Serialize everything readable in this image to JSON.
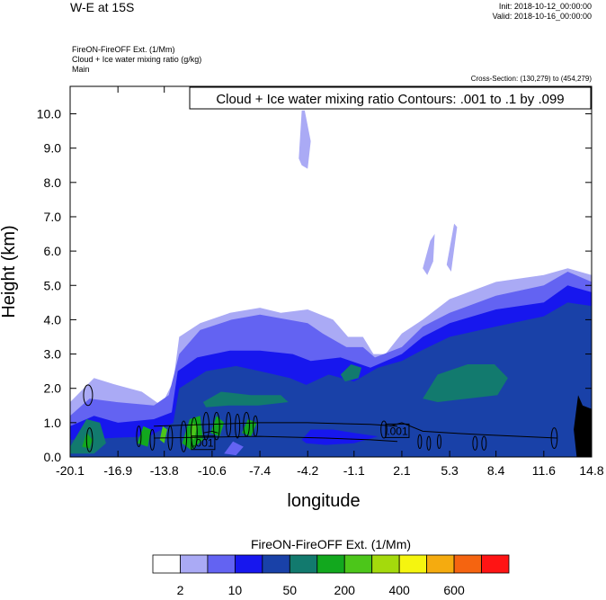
{
  "header": {
    "title": "W-E at 15S",
    "init": "Init: 2018-10-12_00:00:00",
    "valid": "Valid: 2018-10-16_00:00:00",
    "subtitle_lines": [
      "FireON-FireOFF Ext.   (1/Mm)",
      "Cloud + Ice water mixing ratio   (g/kg)",
      "Main"
    ],
    "cross_section": "Cross-Section: (130,279) to (454,279)"
  },
  "chart_data": {
    "type": "contour",
    "xlabel": "longitude",
    "ylabel": "Height (km)",
    "xlim": [
      -20.1,
      14.8
    ],
    "ylim": [
      0,
      10.8
    ],
    "x_ticks": [
      -20.1,
      -16.9,
      -13.8,
      -10.6,
      -7.4,
      -4.2,
      -1.1,
      2.1,
      5.3,
      8.4,
      11.6,
      14.8
    ],
    "x_tick_labels": [
      "-20.1",
      "-16.9",
      "-13.8",
      "-10.6",
      "-7.4",
      "-4.2",
      "-1.1",
      "2.1",
      "5.3",
      "8.4",
      "11.6",
      "14.8"
    ],
    "y_ticks": [
      0,
      1,
      2,
      3,
      4,
      5,
      6,
      7,
      8,
      9,
      10
    ],
    "y_tick_labels": [
      "0.0",
      "1.0",
      "2.0",
      "3.0",
      "4.0",
      "5.0",
      "6.0",
      "7.0",
      "8.0",
      "9.0",
      "10.0"
    ],
    "contour_annotation": "Cloud + Ice water mixing ratio Contours: .001 to .1 by .099",
    "contour_labels": [
      ".001",
      ".001"
    ],
    "colorbar": {
      "title": "FireON-FireOFF Ext.  (1/Mm)",
      "colors": [
        "#ffffff",
        "#aaaaf5",
        "#6363f2",
        "#1717ee",
        "#1941a8",
        "#127a6e",
        "#12a81e",
        "#4cc61a",
        "#a4da0c",
        "#f5f50f",
        "#f5ab0f",
        "#f56410",
        "#ff1414"
      ],
      "labels": [
        {
          "text": "2",
          "boundary": 1
        },
        {
          "text": "10",
          "boundary": 3
        },
        {
          "text": "50",
          "boundary": 5
        },
        {
          "text": "200",
          "boundary": 7
        },
        {
          "text": "400",
          "boundary": 9
        },
        {
          "text": "600",
          "boundary": 11
        }
      ]
    },
    "filled_regions": [
      {
        "level": 1,
        "points": [
          [
            -20.1,
            0
          ],
          [
            -20.1,
            1.6
          ],
          [
            -18.5,
            2.3
          ],
          [
            -17,
            2.1
          ],
          [
            -15.3,
            1.9
          ],
          [
            -14,
            1.5
          ],
          [
            -13.2,
            2.2
          ],
          [
            -12.8,
            3.5
          ],
          [
            -11.4,
            3.9
          ],
          [
            -9.4,
            4.2
          ],
          [
            -7.4,
            4.35
          ],
          [
            -6,
            4.2
          ],
          [
            -4.2,
            4.3
          ],
          [
            -2.5,
            4.0
          ],
          [
            -1.5,
            3.5
          ],
          [
            -0.5,
            3.5
          ],
          [
            0.2,
            3.0
          ],
          [
            1,
            3.0
          ],
          [
            2.1,
            3.6
          ],
          [
            3.5,
            4.0
          ],
          [
            5.3,
            4.6
          ],
          [
            8.4,
            5.1
          ],
          [
            11.6,
            5.3
          ],
          [
            13.2,
            5.5
          ],
          [
            14.8,
            5.3
          ],
          [
            14.8,
            0
          ]
        ]
      },
      {
        "level": 1,
        "points": [
          [
            -4.8,
            8.7
          ],
          [
            -4.6,
            10.1
          ],
          [
            -4.4,
            10.1
          ],
          [
            -4.0,
            9.2
          ],
          [
            -4.2,
            8.4
          ],
          [
            -4.6,
            8.5
          ]
        ]
      },
      {
        "level": 1,
        "points": [
          [
            3.5,
            5.5
          ],
          [
            4.0,
            6.3
          ],
          [
            4.3,
            6.5
          ],
          [
            4.2,
            5.7
          ],
          [
            3.8,
            5.3
          ]
        ]
      },
      {
        "level": 1,
        "points": [
          [
            5.1,
            5.6
          ],
          [
            5.6,
            6.8
          ],
          [
            5.8,
            6.7
          ],
          [
            5.4,
            5.4
          ]
        ]
      },
      {
        "level": 2,
        "points": [
          [
            -20.1,
            0
          ],
          [
            -20.1,
            1.2
          ],
          [
            -18.8,
            1.7
          ],
          [
            -17,
            1.6
          ],
          [
            -14.5,
            1.5
          ],
          [
            -13.5,
            1.8
          ],
          [
            -12.8,
            3.0
          ],
          [
            -11.4,
            3.7
          ],
          [
            -9.3,
            4.0
          ],
          [
            -7.4,
            4.15
          ],
          [
            -5.5,
            4.0
          ],
          [
            -4.2,
            3.9
          ],
          [
            -3.2,
            3.6
          ],
          [
            -1.6,
            3.2
          ],
          [
            -0.5,
            3.2
          ],
          [
            0.3,
            2.9
          ],
          [
            2.1,
            3.2
          ],
          [
            3.5,
            3.8
          ],
          [
            5.3,
            4.2
          ],
          [
            8.4,
            4.7
          ],
          [
            11.6,
            5.0
          ],
          [
            13.2,
            5.4
          ],
          [
            14.8,
            5.1
          ],
          [
            14.8,
            0
          ]
        ]
      },
      {
        "level": 3,
        "points": [
          [
            -20.1,
            0
          ],
          [
            -20.1,
            0.9
          ],
          [
            -18.5,
            1.2
          ],
          [
            -16.9,
            1.0
          ],
          [
            -14.5,
            1.1
          ],
          [
            -13.3,
            1.3
          ],
          [
            -12.9,
            2.5
          ],
          [
            -11.6,
            2.9
          ],
          [
            -9.4,
            3.1
          ],
          [
            -7.4,
            3.1
          ],
          [
            -5.2,
            3.0
          ],
          [
            -4.0,
            2.8
          ],
          [
            -2.0,
            2.9
          ],
          [
            0,
            2.6
          ],
          [
            2.1,
            3.0
          ],
          [
            3.5,
            3.5
          ],
          [
            5.3,
            3.9
          ],
          [
            8.4,
            4.3
          ],
          [
            11.6,
            4.5
          ],
          [
            13.2,
            5.0
          ],
          [
            14.8,
            4.8
          ],
          [
            14.8,
            0
          ]
        ]
      },
      {
        "level": 4,
        "points": [
          [
            -20.1,
            0
          ],
          [
            -20.1,
            0.5
          ],
          [
            -14.8,
            0.6
          ],
          [
            -13.2,
            1.0
          ],
          [
            -12.8,
            2.0
          ],
          [
            -11,
            2.5
          ],
          [
            -9,
            2.65
          ],
          [
            -7.4,
            2.5
          ],
          [
            -5.4,
            2.3
          ],
          [
            -4.3,
            2.1
          ],
          [
            -2.8,
            2.4
          ],
          [
            -1.1,
            2.2
          ],
          [
            0.5,
            2.6
          ],
          [
            2.1,
            2.8
          ],
          [
            3.4,
            3.1
          ],
          [
            5.3,
            3.5
          ],
          [
            8.4,
            3.8
          ],
          [
            11.6,
            4.1
          ],
          [
            13.2,
            4.5
          ],
          [
            14.8,
            4.4
          ],
          [
            14.8,
            0
          ]
        ]
      },
      {
        "level": 5,
        "points": [
          [
            -11.2,
            1.6
          ],
          [
            -10,
            1.9
          ],
          [
            -8,
            1.8
          ],
          [
            -6,
            1.8
          ],
          [
            -5.5,
            1.6
          ],
          [
            -7.5,
            1.5
          ],
          [
            -9.5,
            1.5
          ],
          [
            -11,
            1.45
          ]
        ]
      },
      {
        "level": 5,
        "points": [
          [
            -2.0,
            2.4
          ],
          [
            -1.3,
            2.7
          ],
          [
            -0.6,
            2.6
          ],
          [
            -0.8,
            2.3
          ],
          [
            -1.7,
            2.2
          ]
        ]
      },
      {
        "level": 5,
        "points": [
          [
            3.5,
            1.7
          ],
          [
            4.5,
            2.4
          ],
          [
            6.5,
            2.7
          ],
          [
            8.3,
            2.7
          ],
          [
            9.2,
            2.3
          ],
          [
            8.5,
            1.8
          ],
          [
            6.5,
            1.7
          ],
          [
            4.5,
            1.6
          ]
        ]
      },
      {
        "level": 5,
        "points": [
          [
            -20.1,
            0.3
          ],
          [
            -19,
            1.1
          ],
          [
            -18.1,
            1.0
          ],
          [
            -17.7,
            0.4
          ],
          [
            -18.5,
            0.1
          ],
          [
            -20.1,
            0.1
          ]
        ]
      },
      {
        "level": 6,
        "points": [
          [
            -19.3,
            0.3
          ],
          [
            -19.0,
            0.7
          ],
          [
            -18.6,
            0.5
          ],
          [
            -18.8,
            0.25
          ]
        ]
      },
      {
        "level": 6,
        "points": [
          [
            -15.6,
            0.4
          ],
          [
            -15.2,
            0.9
          ],
          [
            -14.7,
            0.8
          ],
          [
            -14.9,
            0.3
          ]
        ]
      },
      {
        "level": 6,
        "points": [
          [
            -12.6,
            0.4
          ],
          [
            -12.1,
            1.1
          ],
          [
            -11.4,
            1.2
          ],
          [
            -11.2,
            0.5
          ],
          [
            -12,
            0.2
          ]
        ]
      },
      {
        "level": 6,
        "points": [
          [
            -10.7,
            0.7
          ],
          [
            -10.3,
            1.2
          ],
          [
            -9.8,
            1.0
          ],
          [
            -10.1,
            0.6
          ]
        ]
      },
      {
        "level": 6,
        "points": [
          [
            -8.6,
            0.7
          ],
          [
            -8.2,
            1.1
          ],
          [
            -7.6,
            1.0
          ],
          [
            -8,
            0.6
          ]
        ]
      },
      {
        "level": 7,
        "points": [
          [
            -12.1,
            0.6
          ],
          [
            -11.9,
            1.0
          ],
          [
            -11.6,
            0.9
          ],
          [
            -11.8,
            0.5
          ]
        ]
      },
      {
        "level": 7,
        "points": [
          [
            -14.1,
            0.5
          ],
          [
            -13.9,
            0.9
          ],
          [
            -13.6,
            0.8
          ],
          [
            -13.8,
            0.4
          ]
        ]
      },
      {
        "level": 3,
        "points": [
          [
            -4.6,
            0.5
          ],
          [
            -4.0,
            0.8
          ],
          [
            -2.5,
            0.8
          ],
          [
            -1.1,
            0.7
          ],
          [
            0.5,
            0.6
          ],
          [
            -1.1,
            0.4
          ],
          [
            -3.0,
            0.35
          ],
          [
            -4.3,
            0.4
          ]
        ]
      },
      {
        "level": 2,
        "points": [
          [
            -9.8,
            0.1
          ],
          [
            -9.2,
            0.45
          ],
          [
            -8.5,
            0.3
          ],
          [
            -9.0,
            0.05
          ]
        ]
      }
    ],
    "terrain": {
      "points": [
        [
          13.8,
          0
        ],
        [
          13.6,
          0.8
        ],
        [
          13.9,
          1.8
        ],
        [
          14.2,
          1.5
        ],
        [
          14.8,
          1.4
        ],
        [
          14.8,
          0
        ]
      ]
    },
    "contour_lines": [
      {
        "points": [
          [
            -14.5,
            0.9
          ],
          [
            -7.4,
            1.0
          ],
          [
            -4.2,
            1.0
          ],
          [
            0,
            0.95
          ],
          [
            1.8,
            0.9
          ]
        ]
      },
      {
        "points": [
          [
            -14.5,
            0.55
          ],
          [
            -7.4,
            0.6
          ],
          [
            -3.0,
            0.55
          ],
          [
            0,
            0.5
          ],
          [
            1.8,
            0.45
          ]
        ]
      },
      {
        "points": [
          [
            -11.2,
            0.7
          ],
          [
            -10.6,
            0.75
          ],
          [
            -10.2,
            0.7
          ]
        ]
      },
      {
        "points": [
          [
            1.3,
            0.9
          ],
          [
            2.1,
            1.0
          ],
          [
            3.5,
            0.75
          ],
          [
            5.3,
            0.7
          ],
          [
            7.5,
            0.65
          ],
          [
            10,
            0.6
          ],
          [
            12.5,
            0.55
          ]
        ]
      }
    ],
    "contour_ellipses": [
      {
        "cx": -18.9,
        "cy": 1.8,
        "rx": 0.3,
        "ry": 0.3
      },
      {
        "cx": -18.8,
        "cy": 0.5,
        "rx": 0.2,
        "ry": 0.35
      },
      {
        "cx": -15.5,
        "cy": 0.6,
        "rx": 0.15,
        "ry": 0.3
      },
      {
        "cx": -14.6,
        "cy": 0.5,
        "rx": 0.15,
        "ry": 0.3
      },
      {
        "cx": -13.4,
        "cy": 0.55,
        "rx": 0.15,
        "ry": 0.35
      },
      {
        "cx": -12.5,
        "cy": 0.6,
        "rx": 0.2,
        "ry": 0.45
      },
      {
        "cx": -11.8,
        "cy": 0.7,
        "rx": 0.2,
        "ry": 0.45
      },
      {
        "cx": -11.0,
        "cy": 0.9,
        "rx": 0.2,
        "ry": 0.4
      },
      {
        "cx": -10.3,
        "cy": 0.9,
        "rx": 0.2,
        "ry": 0.4
      },
      {
        "cx": -9.5,
        "cy": 0.95,
        "rx": 0.15,
        "ry": 0.35
      },
      {
        "cx": -8.9,
        "cy": 0.9,
        "rx": 0.15,
        "ry": 0.35
      },
      {
        "cx": -8.3,
        "cy": 0.95,
        "rx": 0.2,
        "ry": 0.35
      },
      {
        "cx": -7.7,
        "cy": 0.9,
        "rx": 0.15,
        "ry": 0.3
      },
      {
        "cx": 0.9,
        "cy": 0.8,
        "rx": 0.2,
        "ry": 0.25
      },
      {
        "cx": 3.3,
        "cy": 0.45,
        "rx": 0.12,
        "ry": 0.2
      },
      {
        "cx": 3.9,
        "cy": 0.4,
        "rx": 0.12,
        "ry": 0.2
      },
      {
        "cx": 4.6,
        "cy": 0.45,
        "rx": 0.12,
        "ry": 0.2
      },
      {
        "cx": 7.0,
        "cy": 0.4,
        "rx": 0.15,
        "ry": 0.2
      },
      {
        "cx": 7.6,
        "cy": 0.4,
        "rx": 0.15,
        "ry": 0.2
      },
      {
        "cx": 12.3,
        "cy": 0.55,
        "rx": 0.2,
        "ry": 0.3
      }
    ],
    "contour_label_positions": [
      [
        -11.2,
        0.4
      ],
      [
        1.8,
        0.75
      ]
    ]
  }
}
